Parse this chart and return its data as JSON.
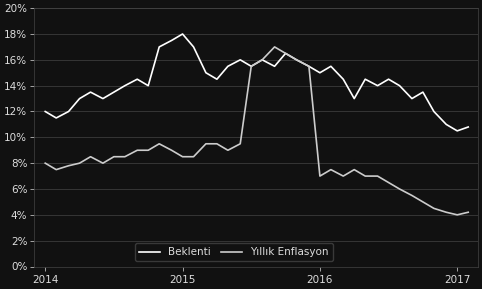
{
  "background_color": "#111111",
  "text_color": "#dddddd",
  "grid_color": "#444444",
  "line_color_beklenti": "#ffffff",
  "line_color_yillik": "#cccccc",
  "ylim": [
    0,
    20
  ],
  "yticks": [
    0,
    2,
    4,
    6,
    8,
    10,
    12,
    14,
    16,
    18,
    20
  ],
  "xticks": [
    2014,
    2015,
    2016,
    2017
  ],
  "legend_labels": [
    "Beklenti",
    "Yıllık Enflasyon"
  ],
  "beklenti_x": [
    2014.0,
    2014.08,
    2014.17,
    2014.25,
    2014.33,
    2014.42,
    2014.5,
    2014.58,
    2014.67,
    2014.75,
    2014.83,
    2014.92,
    2015.0,
    2015.08,
    2015.17,
    2015.25,
    2015.33,
    2015.42,
    2015.5,
    2015.58,
    2015.67,
    2015.75,
    2015.83,
    2015.92,
    2016.0,
    2016.08,
    2016.17,
    2016.25,
    2016.33,
    2016.42,
    2016.5,
    2016.58,
    2016.67,
    2016.75,
    2016.83,
    2016.92,
    2017.0,
    2017.08
  ],
  "beklenti_y": [
    12.0,
    11.5,
    12.0,
    13.0,
    13.5,
    13.0,
    13.5,
    14.0,
    14.5,
    14.0,
    17.0,
    17.5,
    18.0,
    17.0,
    15.0,
    14.5,
    15.5,
    16.0,
    15.5,
    16.0,
    15.5,
    16.5,
    16.0,
    15.5,
    15.0,
    15.5,
    14.5,
    13.0,
    14.5,
    14.0,
    14.5,
    14.0,
    13.0,
    13.5,
    12.0,
    11.0,
    10.5,
    10.8
  ],
  "yillik_x": [
    2014.0,
    2014.08,
    2014.17,
    2014.25,
    2014.33,
    2014.42,
    2014.5,
    2014.58,
    2014.67,
    2014.75,
    2014.83,
    2014.92,
    2015.0,
    2015.08,
    2015.17,
    2015.25,
    2015.33,
    2015.42,
    2015.5,
    2015.58,
    2015.67,
    2015.75,
    2015.83,
    2015.92,
    2016.0,
    2016.08,
    2016.17,
    2016.25,
    2016.33,
    2016.42,
    2016.5,
    2016.58,
    2016.67,
    2016.75,
    2016.83,
    2016.92,
    2017.0,
    2017.08
  ],
  "yillik_y": [
    8.0,
    7.5,
    7.8,
    8.0,
    8.5,
    8.0,
    8.5,
    8.5,
    9.0,
    9.0,
    9.5,
    9.0,
    8.5,
    8.5,
    9.5,
    9.5,
    9.0,
    9.5,
    15.5,
    16.0,
    17.0,
    16.5,
    16.0,
    15.5,
    7.0,
    7.5,
    7.0,
    7.5,
    7.0,
    7.0,
    6.5,
    6.0,
    5.5,
    5.0,
    4.5,
    4.2,
    4.0,
    4.2
  ]
}
